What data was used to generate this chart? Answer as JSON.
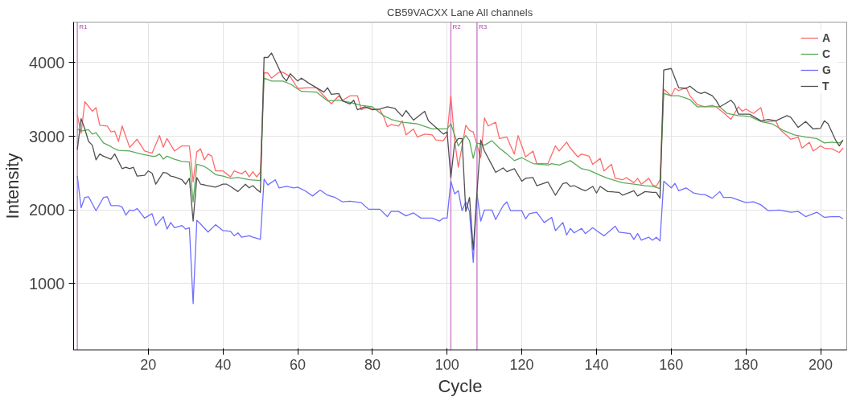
{
  "chart_data": {
    "type": "line",
    "title": "CB59VACXX Lane All channels",
    "xlabel": "Cycle",
    "ylabel": "Intensity",
    "xlim": [
      0,
      207
    ],
    "ylim": [
      100,
      4550
    ],
    "xticks": [
      20,
      40,
      60,
      80,
      100,
      120,
      140,
      160,
      180,
      200
    ],
    "yticks": [
      1000,
      2000,
      3000,
      4000
    ],
    "grid": true,
    "legend": "top right",
    "marker": "none",
    "line_style": "solid",
    "ref_lines": [
      {
        "axis": "x",
        "value": 1,
        "label": "R1",
        "color": "#cc88cc"
      },
      {
        "axis": "x",
        "value": 101,
        "label": "R2",
        "color": "#cc88cc"
      },
      {
        "axis": "x",
        "value": 108,
        "label": "R3",
        "color": "#cc88cc"
      }
    ],
    "series": [
      {
        "name": "A",
        "color": "#ff6a6a",
        "x": [
          1,
          2,
          3,
          5,
          6,
          7,
          9,
          10,
          11,
          12,
          13,
          15,
          17,
          19,
          21,
          23,
          24,
          25,
          27,
          29,
          31,
          32,
          33,
          34,
          35,
          36,
          37,
          38,
          40,
          41,
          42,
          43,
          45,
          46,
          47,
          48,
          49,
          50,
          51,
          52,
          53,
          55,
          56,
          58,
          60,
          63,
          65,
          67,
          69,
          71,
          72,
          74,
          76,
          77,
          79,
          80,
          82,
          83,
          84,
          85,
          87,
          88,
          89,
          91,
          92,
          94,
          96,
          97,
          99,
          100,
          101,
          102,
          103,
          105,
          106,
          107,
          109,
          110,
          111,
          113,
          114,
          116,
          117,
          118,
          119,
          120,
          121,
          123,
          124,
          127,
          129,
          130,
          132,
          133,
          135,
          136,
          138,
          139,
          141,
          142,
          144,
          145,
          147,
          148,
          150,
          151,
          152,
          154,
          155,
          156,
          157,
          158,
          160,
          161,
          162,
          164,
          165,
          167,
          169,
          171,
          172,
          174,
          176,
          178,
          179,
          180,
          182,
          184,
          185,
          186,
          188,
          189,
          192,
          194,
          195,
          197,
          198,
          200,
          201,
          203,
          205,
          206
        ],
        "values": [
          3290,
          3040,
          3470,
          3340,
          3390,
          3150,
          3140,
          3060,
          3070,
          2930,
          3140,
          2850,
          2960,
          2800,
          2770,
          3010,
          2850,
          2970,
          2800,
          2870,
          2870,
          2380,
          2790,
          2830,
          2680,
          2760,
          2730,
          2530,
          2530,
          2490,
          2450,
          2530,
          2490,
          2530,
          2450,
          2520,
          2450,
          2510,
          3860,
          3860,
          3790,
          3870,
          3870,
          3810,
          3650,
          3660,
          3660,
          3550,
          3440,
          3550,
          3490,
          3550,
          3550,
          3360,
          3400,
          3370,
          3360,
          3270,
          3130,
          3160,
          3140,
          3210,
          3020,
          3100,
          2990,
          3030,
          3020,
          2950,
          2940,
          3020,
          3550,
          2950,
          2580,
          3150,
          3080,
          3060,
          2710,
          3250,
          3140,
          3190,
          2970,
          2990,
          2870,
          2760,
          3010,
          2870,
          2720,
          2800,
          2630,
          2630,
          2870,
          2800,
          2920,
          2840,
          2720,
          2760,
          2730,
          2620,
          2700,
          2530,
          2620,
          2430,
          2410,
          2440,
          2370,
          2430,
          2350,
          2430,
          2340,
          2320,
          2410,
          3640,
          3550,
          3650,
          3620,
          3660,
          3550,
          3430,
          3400,
          3420,
          3400,
          3320,
          3230,
          3400,
          3340,
          3370,
          3310,
          3390,
          3190,
          3200,
          3210,
          3100,
          2960,
          2990,
          2840,
          2920,
          2800,
          2870,
          2840,
          2830,
          2780,
          2840
        ]
      },
      {
        "name": "C",
        "color": "#5aaa5a",
        "x": [
          1,
          2,
          4,
          5,
          6,
          8,
          10,
          11,
          12,
          15,
          18,
          21,
          22,
          23,
          24,
          25,
          27,
          29,
          31,
          32,
          33,
          35,
          36,
          38,
          40,
          42,
          44,
          47,
          50,
          51,
          53,
          56,
          58,
          61,
          65,
          68,
          71,
          74,
          77,
          80,
          83,
          85,
          88,
          92,
          96,
          100,
          101,
          103,
          105,
          106,
          107,
          108,
          110,
          112,
          114,
          116,
          118,
          120,
          123,
          127,
          128,
          130,
          133,
          136,
          138,
          141,
          143,
          147,
          150,
          153,
          155,
          157,
          158,
          160,
          162,
          165,
          167,
          171,
          173,
          175,
          178,
          181,
          184,
          187,
          190,
          193,
          196,
          199,
          201,
          203,
          205,
          206
        ],
        "values": [
          3100,
          3070,
          3090,
          3030,
          3050,
          2910,
          2860,
          2830,
          2810,
          2800,
          2760,
          2730,
          2730,
          2760,
          2690,
          2730,
          2690,
          2660,
          2650,
          2110,
          2620,
          2590,
          2560,
          2480,
          2460,
          2430,
          2440,
          2410,
          2400,
          3790,
          3750,
          3750,
          3710,
          3610,
          3600,
          3480,
          3490,
          3460,
          3420,
          3400,
          3280,
          3230,
          3190,
          3170,
          3100,
          3100,
          3170,
          2870,
          3010,
          2940,
          2700,
          2910,
          2880,
          2940,
          2840,
          2760,
          2670,
          2710,
          2630,
          2610,
          2630,
          2610,
          2670,
          2560,
          2540,
          2470,
          2430,
          2370,
          2350,
          2330,
          2320,
          2290,
          3580,
          3550,
          3550,
          3500,
          3400,
          3400,
          3400,
          3310,
          3280,
          3270,
          3200,
          3170,
          3080,
          3020,
          2990,
          2970,
          2910,
          2920,
          2910,
          2940
        ]
      },
      {
        "name": "G",
        "color": "#6e6eff",
        "x": [
          1,
          2,
          3,
          4,
          6,
          8,
          9,
          10,
          12,
          13,
          14,
          15,
          16,
          17,
          19,
          21,
          22,
          24,
          25,
          26,
          27,
          29,
          30,
          31,
          32,
          33,
          34,
          36,
          38,
          40,
          42,
          43,
          44,
          45,
          47,
          48,
          50,
          51,
          52,
          54,
          55,
          57,
          59,
          60,
          62,
          64,
          66,
          68,
          70,
          72,
          74,
          77,
          79,
          82,
          84,
          85,
          87,
          89,
          91,
          93,
          96,
          98,
          99,
          100,
          101,
          102,
          103,
          104,
          105,
          106,
          107,
          108,
          109,
          110,
          112,
          113,
          115,
          116,
          117,
          120,
          121,
          122,
          124,
          126,
          128,
          129,
          131,
          132,
          133,
          134,
          136,
          137,
          139,
          140,
          142,
          145,
          146,
          149,
          150,
          151,
          152,
          154,
          155,
          156,
          157,
          158,
          160,
          161,
          162,
          164,
          166,
          168,
          169,
          171,
          173,
          174,
          176,
          180,
          182,
          184,
          186,
          189,
          192,
          194,
          196,
          199,
          201,
          203,
          205,
          206
        ],
        "values": [
          2460,
          2030,
          2170,
          2180,
          1990,
          2170,
          2180,
          2060,
          2060,
          2040,
          1930,
          2000,
          1990,
          2020,
          1890,
          1950,
          1790,
          1910,
          1740,
          1830,
          1760,
          1790,
          1740,
          1760,
          730,
          1860,
          1810,
          1700,
          1800,
          1720,
          1710,
          1650,
          1690,
          1630,
          1650,
          1630,
          1600,
          2420,
          2340,
          2410,
          2300,
          2320,
          2300,
          2310,
          2260,
          2190,
          2270,
          2200,
          2170,
          2110,
          2120,
          2100,
          2010,
          2010,
          1910,
          1980,
          1980,
          1920,
          1960,
          1890,
          1890,
          1850,
          1890,
          1890,
          2390,
          2220,
          2260,
          1990,
          2110,
          1980,
          1290,
          2220,
          1850,
          2000,
          2000,
          1870,
          2060,
          2110,
          1990,
          1990,
          1880,
          1950,
          1970,
          1830,
          1900,
          1720,
          1830,
          1660,
          1750,
          1690,
          1750,
          1680,
          1760,
          1720,
          1650,
          1780,
          1700,
          1680,
          1600,
          1680,
          1590,
          1630,
          1590,
          1630,
          1580,
          2390,
          2300,
          2360,
          2260,
          2300,
          2230,
          2210,
          2210,
          2160,
          2250,
          2170,
          2170,
          2100,
          2110,
          2070,
          1990,
          2000,
          1970,
          1980,
          1910,
          1970,
          1900,
          1910,
          1910,
          1880
        ]
      },
      {
        "name": "T",
        "color": "#505050",
        "x": [
          1,
          2,
          3,
          4,
          5,
          6,
          7,
          8,
          10,
          11,
          13,
          14,
          15,
          16,
          17,
          19,
          20,
          21,
          22,
          24,
          25,
          26,
          27,
          29,
          30,
          31,
          32,
          33,
          34,
          36,
          38,
          40,
          41,
          42,
          44,
          46,
          47,
          48,
          49,
          50,
          51,
          52,
          53,
          56,
          57,
          58,
          60,
          61,
          63,
          65,
          67,
          68,
          69,
          71,
          72,
          74,
          75,
          76,
          78,
          80,
          82,
          84,
          86,
          88,
          89,
          91,
          94,
          95,
          97,
          99,
          100,
          101,
          102,
          103,
          104,
          105,
          106,
          107,
          108,
          109,
          110,
          112,
          113,
          115,
          116,
          118,
          120,
          121,
          123,
          124,
          127,
          129,
          131,
          132,
          133,
          134,
          136,
          137,
          139,
          140,
          141,
          143,
          146,
          147,
          150,
          151,
          153,
          155,
          156,
          157,
          158,
          160,
          162,
          164,
          165,
          167,
          168,
          169,
          171,
          172,
          173,
          176,
          177,
          178,
          181,
          182,
          184,
          186,
          188,
          191,
          192,
          194,
          196,
          198,
          200,
          201,
          202,
          204,
          205,
          206
        ],
        "values": [
          2820,
          3240,
          3100,
          2930,
          2880,
          2680,
          2760,
          2730,
          2690,
          2760,
          2560,
          2580,
          2560,
          2580,
          2460,
          2470,
          2530,
          2500,
          2350,
          2510,
          2500,
          2460,
          2450,
          2410,
          2350,
          2430,
          1850,
          2440,
          2350,
          2330,
          2310,
          2350,
          2350,
          2320,
          2250,
          2350,
          2300,
          2330,
          2280,
          2240,
          4070,
          4070,
          4130,
          3810,
          3750,
          3850,
          3750,
          3790,
          3720,
          3660,
          3600,
          3660,
          3570,
          3580,
          3480,
          3440,
          3490,
          3360,
          3400,
          3360,
          3370,
          3400,
          3380,
          3270,
          3350,
          3220,
          3340,
          3210,
          3120,
          3030,
          3060,
          2440,
          2900,
          2970,
          2970,
          1980,
          2170,
          1460,
          2240,
          2950,
          2800,
          2610,
          2510,
          2570,
          2520,
          2560,
          2390,
          2430,
          2440,
          2330,
          2380,
          2200,
          2360,
          2370,
          2320,
          2330,
          2280,
          2260,
          2320,
          2230,
          2320,
          2250,
          2240,
          2200,
          2260,
          2190,
          2250,
          2240,
          2240,
          2160,
          3900,
          3920,
          3660,
          3650,
          3680,
          3600,
          3580,
          3600,
          3550,
          3490,
          3400,
          3490,
          3430,
          3300,
          3300,
          3270,
          3210,
          3230,
          3210,
          3280,
          3260,
          3120,
          3200,
          3100,
          3110,
          3210,
          3170,
          2950,
          2870,
          2950
        ]
      }
    ]
  }
}
